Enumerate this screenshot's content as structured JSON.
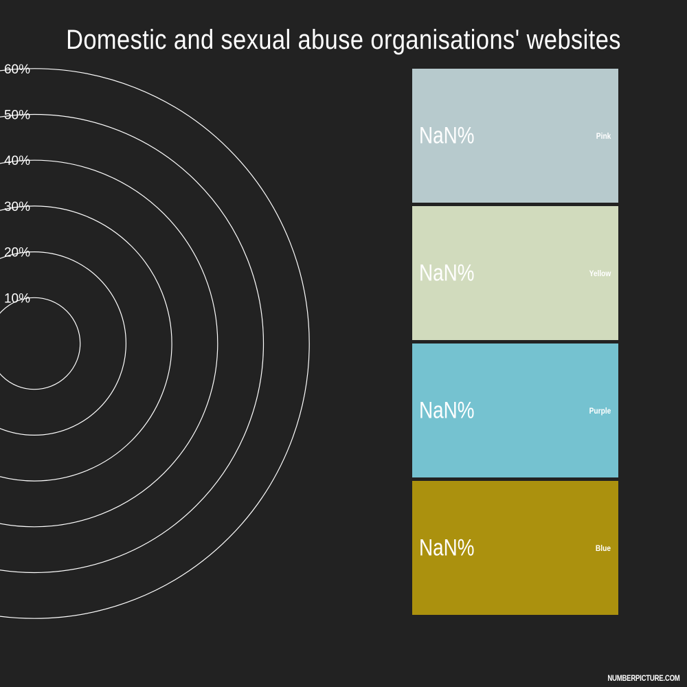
{
  "chart_data": {
    "type": "radial",
    "title": "Domestic and sexual abuse organisations' websites",
    "ticks": [
      "10%",
      "20%",
      "30%",
      "40%",
      "50%",
      "60%"
    ],
    "rlim": [
      0,
      60
    ],
    "categories": [
      {
        "name": "Pink",
        "value_label": "NaN%",
        "color": "#b7cacd"
      },
      {
        "name": "Yellow",
        "value_label": "NaN%",
        "color": "#d1dbbd"
      },
      {
        "name": "Purple",
        "value_label": "NaN%",
        "color": "#75c2d0"
      },
      {
        "name": "Blue",
        "value_label": "NaN%",
        "color": "#ab910e"
      }
    ]
  },
  "footer": "NUMBERPICTURE.COM"
}
